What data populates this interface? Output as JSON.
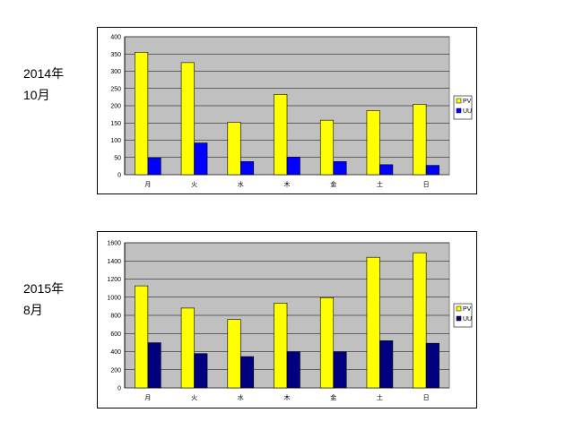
{
  "labels": [
    {
      "year": "2014年",
      "month": "10月"
    },
    {
      "year": "2015年",
      "month": "8月"
    }
  ],
  "chart_data": [
    {
      "type": "bar",
      "categories": [
        "月",
        "火",
        "水",
        "木",
        "金",
        "土",
        "日"
      ],
      "series": [
        {
          "name": "PV",
          "color": "#ffff00",
          "values": [
            355,
            325,
            152,
            233,
            158,
            186,
            204
          ]
        },
        {
          "name": "UU",
          "color": "#0000ff",
          "values": [
            49,
            92,
            38,
            51,
            38,
            29,
            27
          ]
        }
      ],
      "ylim": [
        0,
        400
      ],
      "yticks": [
        0,
        50,
        100,
        150,
        200,
        250,
        300,
        350,
        400
      ],
      "grid": true,
      "plot_background": "#c0c0c0",
      "legend": "right"
    },
    {
      "type": "bar",
      "categories": [
        "月",
        "火",
        "水",
        "木",
        "金",
        "土",
        "日"
      ],
      "series": [
        {
          "name": "PV",
          "color": "#ffff00",
          "values": [
            1125,
            880,
            755,
            935,
            995,
            1440,
            1490
          ]
        },
        {
          "name": "UU",
          "color": "#000080",
          "values": [
            498,
            378,
            345,
            398,
            398,
            520,
            492
          ]
        }
      ],
      "ylim": [
        0,
        1600
      ],
      "yticks": [
        0,
        200,
        400,
        600,
        800,
        1000,
        1200,
        1400,
        1600
      ],
      "grid": true,
      "plot_background": "#c0c0c0",
      "legend": "right"
    }
  ]
}
